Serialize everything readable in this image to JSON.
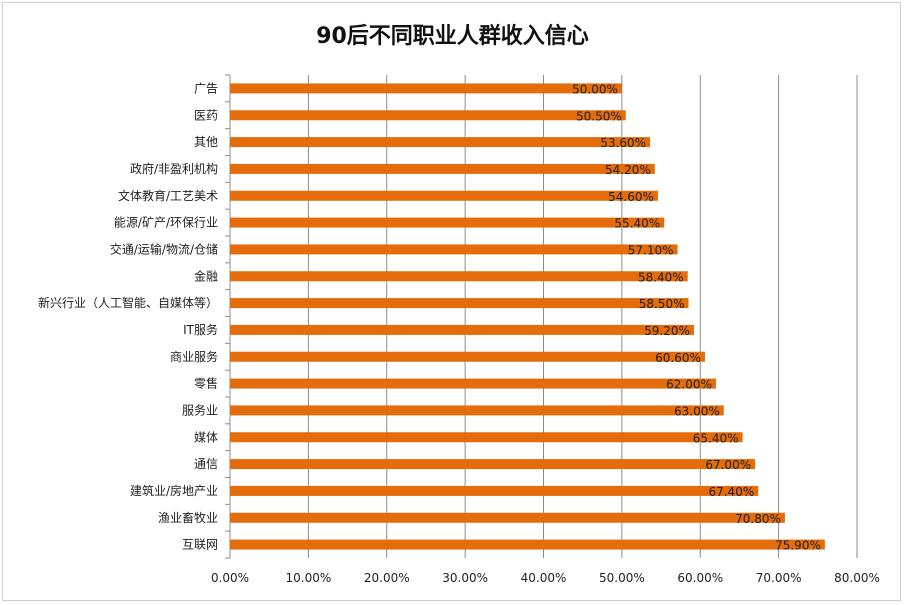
{
  "chart_data": {
    "type": "bar",
    "orientation": "horizontal",
    "title": "90后不同职业人群收入信心",
    "categories": [
      "广告",
      "医药",
      "其他",
      "政府/非盈利机构",
      "文体教育/工艺美术",
      "能源/矿产/环保行业",
      "交通/运输/物流/仓储",
      "金融",
      "新兴行业（人工智能、自媒体等）",
      "IT服务",
      "商业服务",
      "零售",
      "服务业",
      "媒体",
      "通信",
      "建筑业/房地产业",
      "渔业畜牧业",
      "互联网"
    ],
    "values": [
      50.0,
      50.5,
      53.6,
      54.2,
      54.6,
      55.4,
      57.1,
      58.4,
      58.5,
      59.2,
      60.6,
      62.0,
      63.0,
      65.4,
      67.0,
      67.4,
      70.8,
      75.9
    ],
    "data_labels": [
      "50.00%",
      "50.50%",
      "53.60%",
      "54.20%",
      "54.60%",
      "55.40%",
      "57.10%",
      "58.40%",
      "58.50%",
      "59.20%",
      "60.60%",
      "62.00%",
      "63.00%",
      "65.40%",
      "67.00%",
      "67.40%",
      "70.80%",
      "75.90%"
    ],
    "xlim": [
      0,
      80
    ],
    "x_ticks": [
      0,
      10,
      20,
      30,
      40,
      50,
      60,
      70,
      80
    ],
    "x_tick_labels": [
      "0.00%",
      "10.00%",
      "20.00%",
      "30.00%",
      "40.00%",
      "50.00%",
      "60.00%",
      "70.00%",
      "80.00%"
    ],
    "grid": "vertical",
    "legend": "none",
    "bar_color": "#E46C0A",
    "grid_color": "#8c8c8c"
  }
}
